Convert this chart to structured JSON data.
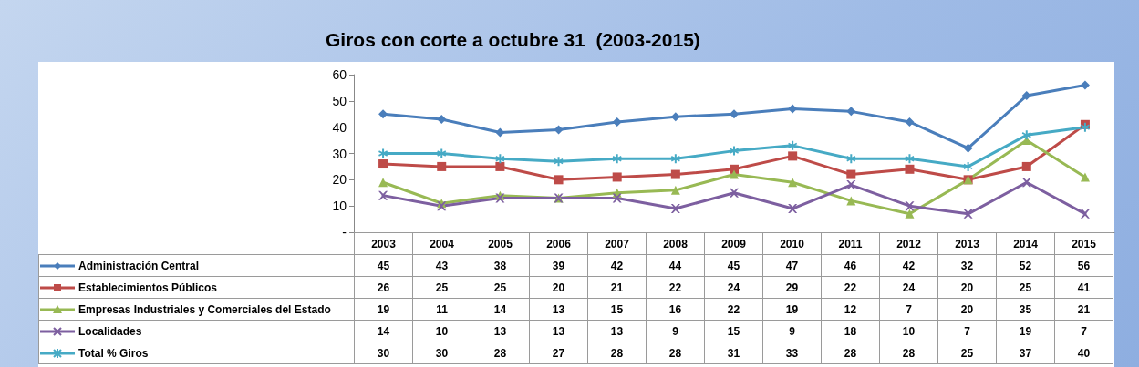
{
  "chart_data": {
    "type": "line",
    "title": "Giros con corte a octubre 31  (2003-2015)",
    "categories": [
      "2003",
      "2004",
      "2005",
      "2006",
      "2007",
      "2008",
      "2009",
      "2010",
      "2011",
      "2012",
      "2013",
      "2014",
      "2015"
    ],
    "series": [
      {
        "name": "Administración Central",
        "color": "#4a7ebb",
        "marker": "diamond",
        "values": [
          45,
          43,
          38,
          39,
          42,
          44,
          45,
          47,
          46,
          42,
          32,
          52,
          56
        ]
      },
      {
        "name": "Establecimientos Públicos",
        "color": "#be4b48",
        "marker": "square",
        "values": [
          26,
          25,
          25,
          20,
          21,
          22,
          24,
          29,
          22,
          24,
          20,
          25,
          41
        ]
      },
      {
        "name": "Empresas Industriales y Comerciales del Estado",
        "color": "#98b954",
        "marker": "triangle",
        "values": [
          19,
          11,
          14,
          13,
          15,
          16,
          22,
          19,
          12,
          7,
          20,
          35,
          21
        ]
      },
      {
        "name": "Localidades",
        "color": "#7d5fa0",
        "marker": "cross",
        "values": [
          14,
          10,
          13,
          13,
          13,
          9,
          15,
          9,
          18,
          10,
          7,
          19,
          7
        ]
      },
      {
        "name": "Total % Giros",
        "color": "#46aac5",
        "marker": "star",
        "values": [
          30,
          30,
          28,
          27,
          28,
          28,
          31,
          33,
          28,
          28,
          25,
          37,
          40
        ]
      }
    ],
    "ylim": [
      0,
      60
    ],
    "yticks": [
      {
        "value": 0,
        "label": "-"
      },
      10,
      20,
      30,
      40,
      50,
      60
    ],
    "data_labels": true,
    "legend": "bottom",
    "line_style": "solid"
  }
}
